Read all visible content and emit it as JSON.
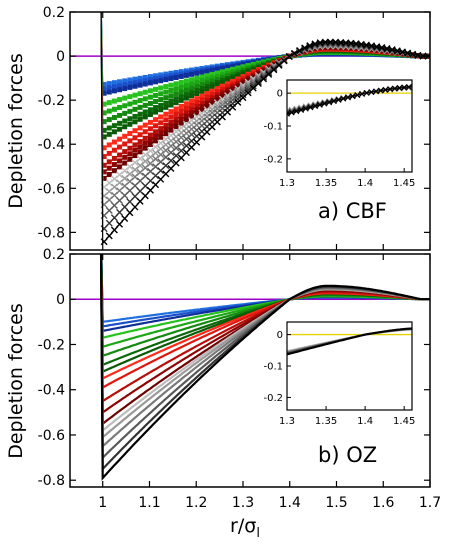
{
  "figure": {
    "ylabel": "Depletion forces",
    "xlabel_main": "r/σ",
    "xlabel_sub": "l"
  },
  "palette": {
    "blue": [
      "#1f6fe0",
      "#1a4fc9",
      "#0e2f9a",
      "#06208a"
    ],
    "green": [
      "#27c21f",
      "#1ca814",
      "#148a0e",
      "#0b6a08",
      "#0a5a07"
    ],
    "red": [
      "#ff2a1a",
      "#e0170f",
      "#b80d08",
      "#8e0504",
      "#6e0202"
    ],
    "gray": [
      "#bdbdbd",
      "#9a9a9a",
      "#7a7a7a",
      "#5a5a5a",
      "#333333",
      "#000000"
    ],
    "zero_line_main": "#a000c8",
    "zero_line_inset": "#e6d200"
  },
  "chart_data": [
    {
      "type": "scatter",
      "panel_label": "a) CBF",
      "ylabel": "Depletion forces",
      "xlabel": "",
      "xlim": [
        0.93,
        1.7
      ],
      "ylim": [
        -0.88,
        0.2
      ],
      "xticks": [],
      "xtick_labels": [],
      "yticks": [
        0.2,
        0,
        -0.2,
        -0.4,
        -0.6,
        -0.8
      ],
      "ytick_labels": [
        "0.2",
        "0",
        "-0.2",
        "-0.4",
        "-0.6",
        "-0.8"
      ],
      "zero_line": true,
      "series": [
        {
          "group": "blue",
          "f_min": -0.13
        },
        {
          "group": "blue",
          "f_min": -0.15
        },
        {
          "group": "blue",
          "f_min": -0.17
        },
        {
          "group": "green",
          "f_min": -0.22
        },
        {
          "group": "green",
          "f_min": -0.26
        },
        {
          "group": "green",
          "f_min": -0.3
        },
        {
          "group": "green",
          "f_min": -0.34
        },
        {
          "group": "green",
          "f_min": -0.37
        },
        {
          "group": "red",
          "f_min": -0.42
        },
        {
          "group": "red",
          "f_min": -0.46
        },
        {
          "group": "red",
          "f_min": -0.5
        },
        {
          "group": "red",
          "f_min": -0.53
        },
        {
          "group": "red",
          "f_min": -0.56
        },
        {
          "group": "gray",
          "f_min": -0.6
        },
        {
          "group": "gray",
          "f_min": -0.64
        },
        {
          "group": "gray",
          "f_min": -0.68
        },
        {
          "group": "gray",
          "f_min": -0.73
        },
        {
          "group": "gray",
          "f_min": -0.79
        },
        {
          "group": "gray",
          "f_min": -0.85
        }
      ],
      "model": {
        "x_contact": 1.0,
        "x_zero": 1.4,
        "x_peak": 1.48,
        "x_end": 1.68,
        "peak_ratio": 0.075
      },
      "inset": {
        "xlim": [
          1.3,
          1.46
        ],
        "ylim": [
          -0.24,
          0.04
        ],
        "xticks": [
          1.3,
          1.35,
          1.4,
          1.45
        ],
        "xtick_labels": [
          "1.3",
          "1.35",
          "1.4",
          "1.45"
        ],
        "yticks": [
          0,
          -0.1,
          -0.2
        ],
        "ytick_labels": [
          "0",
          "-0.1",
          "-0.2"
        ],
        "zero_line": true
      }
    },
    {
      "type": "line",
      "panel_label": "b) OZ",
      "ylabel": "Depletion forces",
      "xlabel": "r/σl",
      "xlim": [
        0.93,
        1.7
      ],
      "ylim": [
        -0.83,
        0.2
      ],
      "xticks": [
        1,
        1.1,
        1.2,
        1.3,
        1.4,
        1.5,
        1.6,
        1.7
      ],
      "xtick_labels": [
        "1",
        "1.1",
        "1.2",
        "1.3",
        "1.4",
        "1.5",
        "1.6",
        "1.7"
      ],
      "yticks": [
        0.2,
        0,
        -0.2,
        -0.4,
        -0.6,
        -0.8
      ],
      "ytick_labels": [
        "0.2",
        "0",
        "-0.2",
        "-0.4",
        "-0.6",
        "-0.8"
      ],
      "zero_line": true,
      "series": [
        {
          "group": "blue",
          "f_min": -0.1
        },
        {
          "group": "blue",
          "f_min": -0.12
        },
        {
          "group": "blue",
          "f_min": -0.14
        },
        {
          "group": "green",
          "f_min": -0.17
        },
        {
          "group": "green",
          "f_min": -0.21
        },
        {
          "group": "green",
          "f_min": -0.25
        },
        {
          "group": "green",
          "f_min": -0.29
        },
        {
          "group": "green",
          "f_min": -0.32
        },
        {
          "group": "red",
          "f_min": -0.35
        },
        {
          "group": "red",
          "f_min": -0.39
        },
        {
          "group": "red",
          "f_min": -0.45
        },
        {
          "group": "red",
          "f_min": -0.5
        },
        {
          "group": "red",
          "f_min": -0.55
        },
        {
          "group": "gray",
          "f_min": -0.58
        },
        {
          "group": "gray",
          "f_min": -0.61
        },
        {
          "group": "gray",
          "f_min": -0.65
        },
        {
          "group": "gray",
          "f_min": -0.7
        },
        {
          "group": "gray",
          "f_min": -0.75
        },
        {
          "group": "gray",
          "f_min": -0.79
        }
      ],
      "model": {
        "x_contact": 1.0,
        "x_zero": 1.4,
        "x_peak": 1.48,
        "x_end": 1.68,
        "peak_ratio": 0.075
      },
      "inset": {
        "xlim": [
          1.3,
          1.46
        ],
        "ylim": [
          -0.24,
          0.04
        ],
        "xticks": [
          1.3,
          1.35,
          1.4,
          1.45
        ],
        "xtick_labels": [
          "1.3",
          "1.35",
          "1.4",
          "1.45"
        ],
        "yticks": [
          0,
          -0.1,
          -0.2
        ],
        "ytick_labels": [
          "0",
          "-0.1",
          "-0.2"
        ],
        "zero_line": true
      }
    }
  ]
}
